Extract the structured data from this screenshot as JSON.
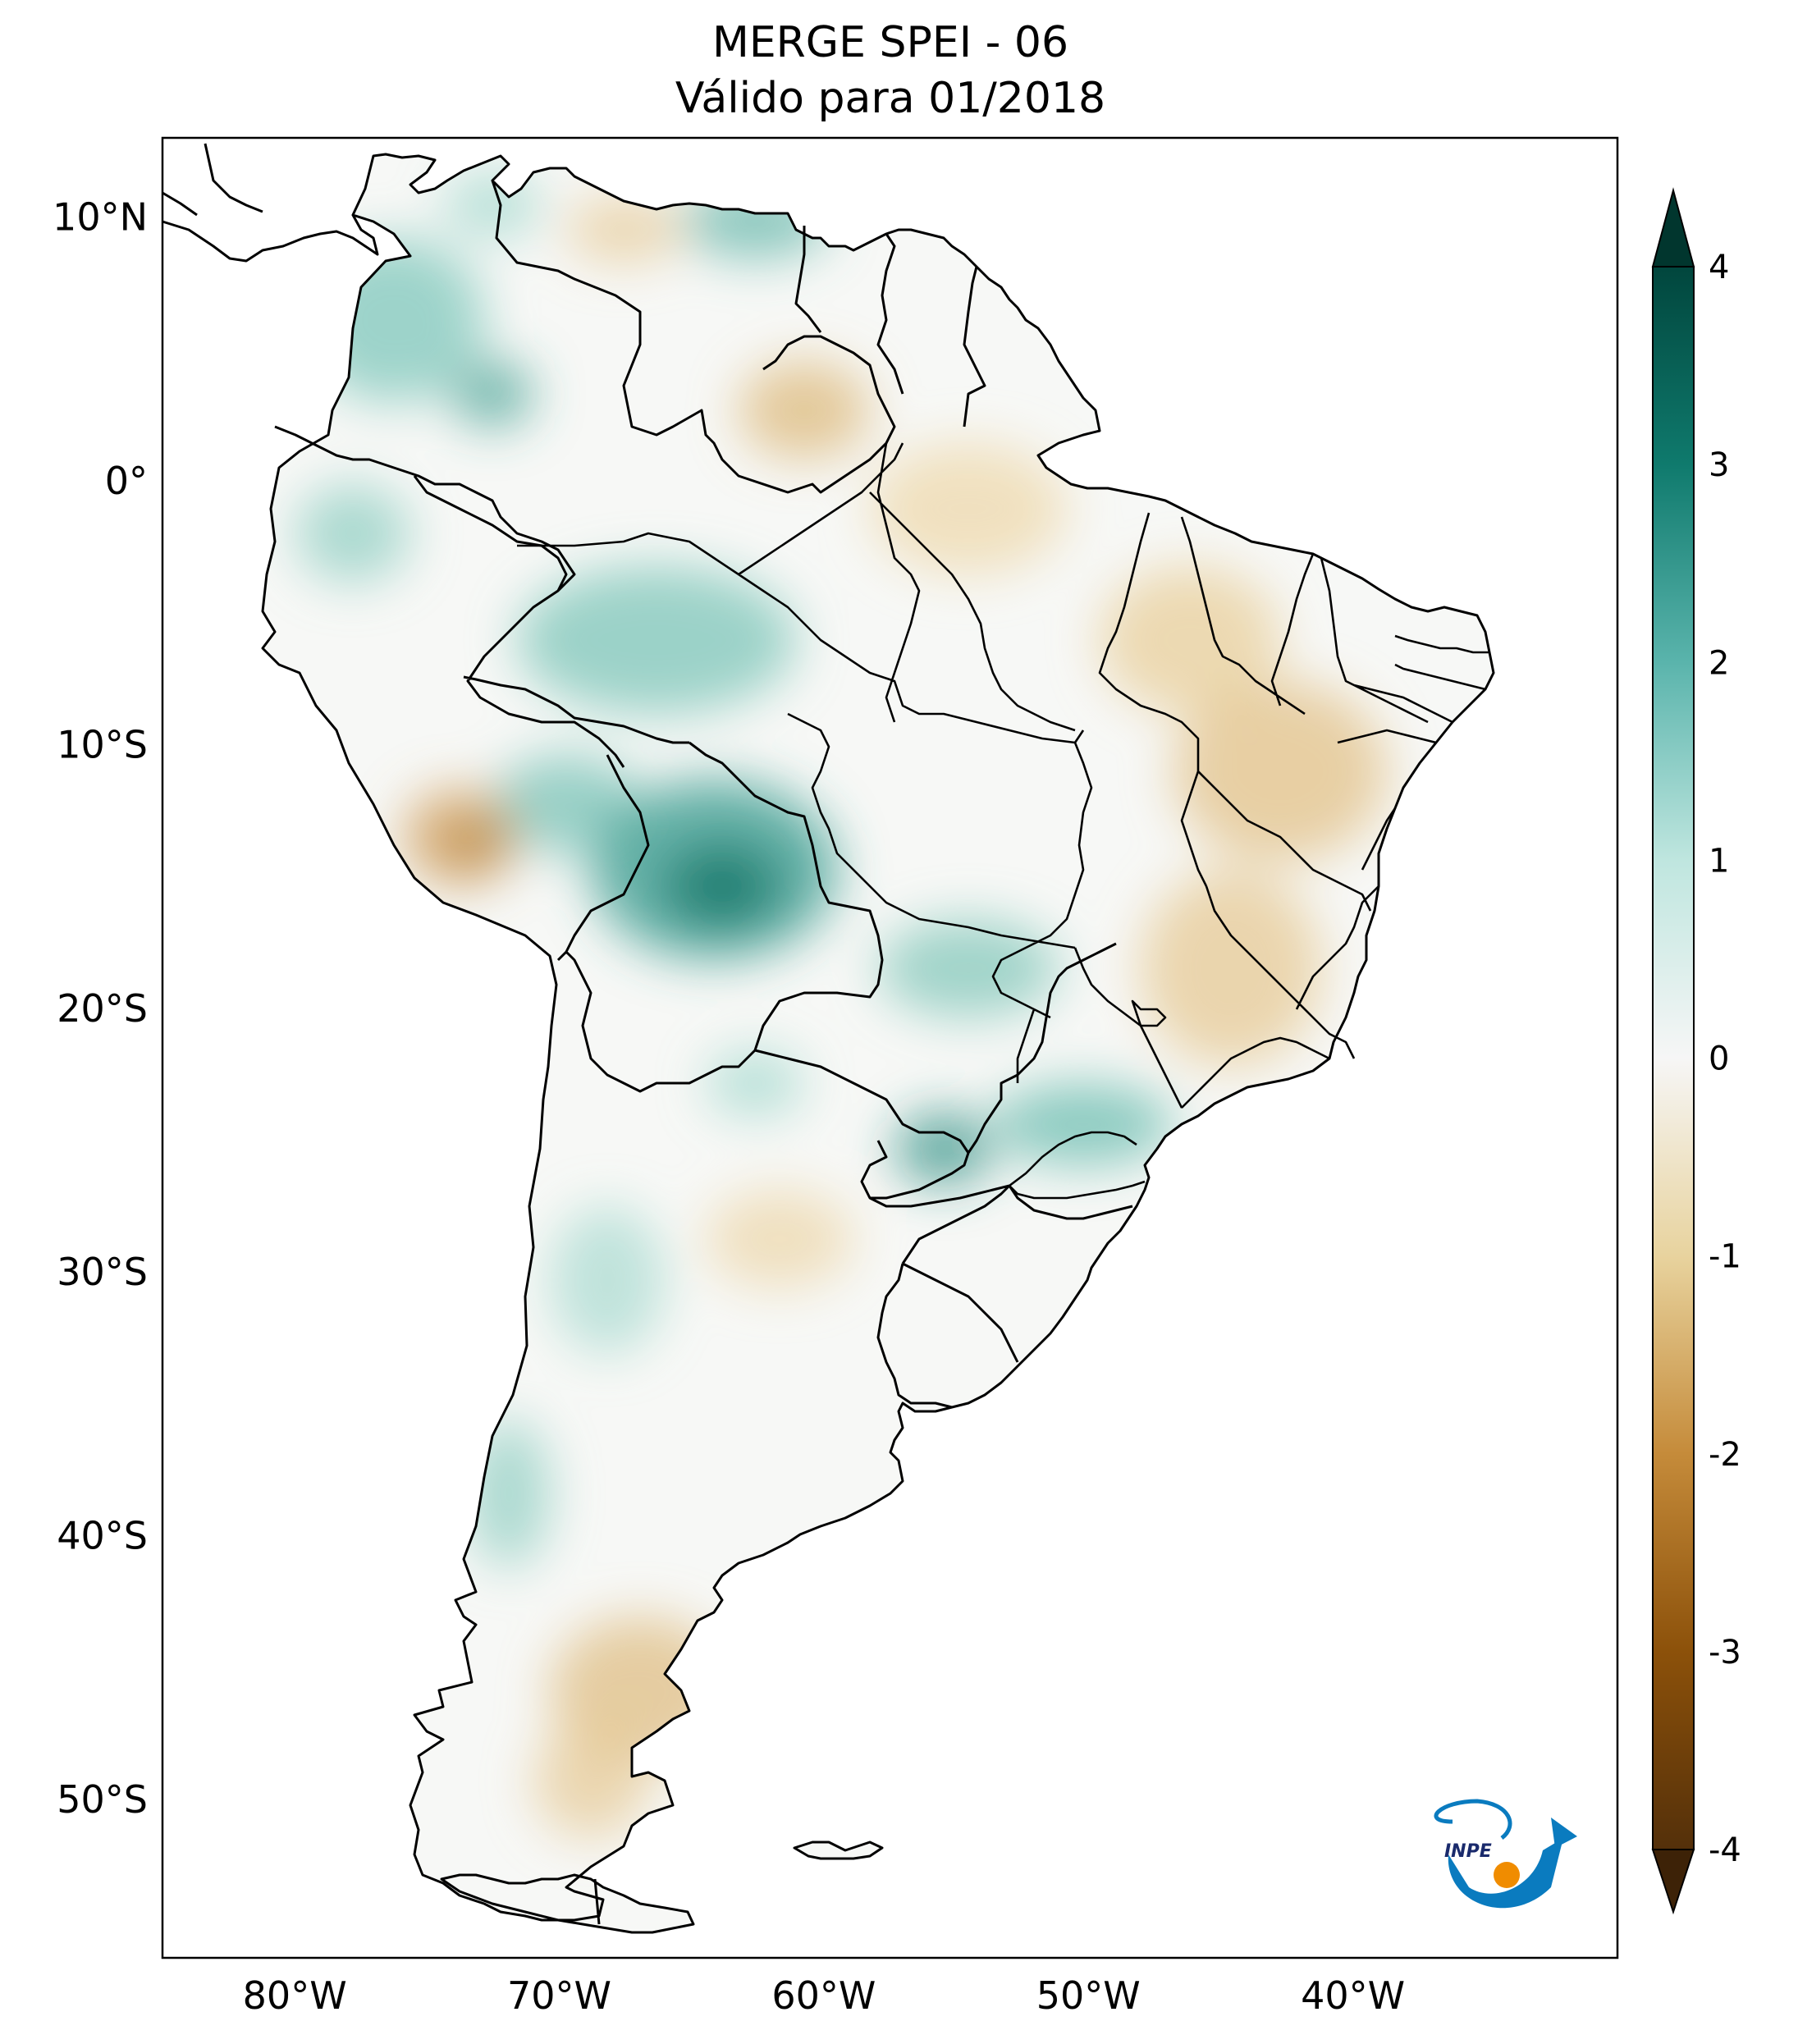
{
  "title": {
    "line1": "MERGE   SPEI - 06",
    "line2": "Válido para 01/2018"
  },
  "axes": {
    "lat_ticks": [
      "10°N",
      "0°",
      "10°S",
      "20°S",
      "30°S",
      "40°S",
      "50°S"
    ],
    "lon_ticks": [
      "80°W",
      "70°W",
      "60°W",
      "50°W",
      "40°W"
    ],
    "lat_values": [
      10,
      0,
      -10,
      -20,
      -30,
      -40,
      -50
    ],
    "lon_values": [
      -80,
      -70,
      -60,
      -50,
      -40
    ],
    "lon_range": [
      -85,
      -30
    ],
    "lat_range": [
      -56,
      13
    ]
  },
  "colorbar": {
    "ticks": [
      "4",
      "3",
      "2",
      "1",
      "0",
      "-1",
      "-2",
      "-3",
      "-4"
    ],
    "values": [
      4,
      3,
      2,
      1,
      0,
      -1,
      -2,
      -3,
      -4
    ],
    "range": [
      -4,
      4
    ],
    "colors": {
      "top_arrow": "#01362e",
      "minus4": "#54300a",
      "minus3": "#8c510a",
      "minus2": "#c58b3a",
      "minus1": "#e8d39e",
      "zero": "#f6f6f6",
      "plus1": "#bfe6df",
      "plus2": "#5ab4ac",
      "plus3": "#0f7a6d",
      "plus4": "#01463d",
      "bottom_arrow": "#3d2207"
    }
  },
  "logo": {
    "text": "INPE"
  }
}
